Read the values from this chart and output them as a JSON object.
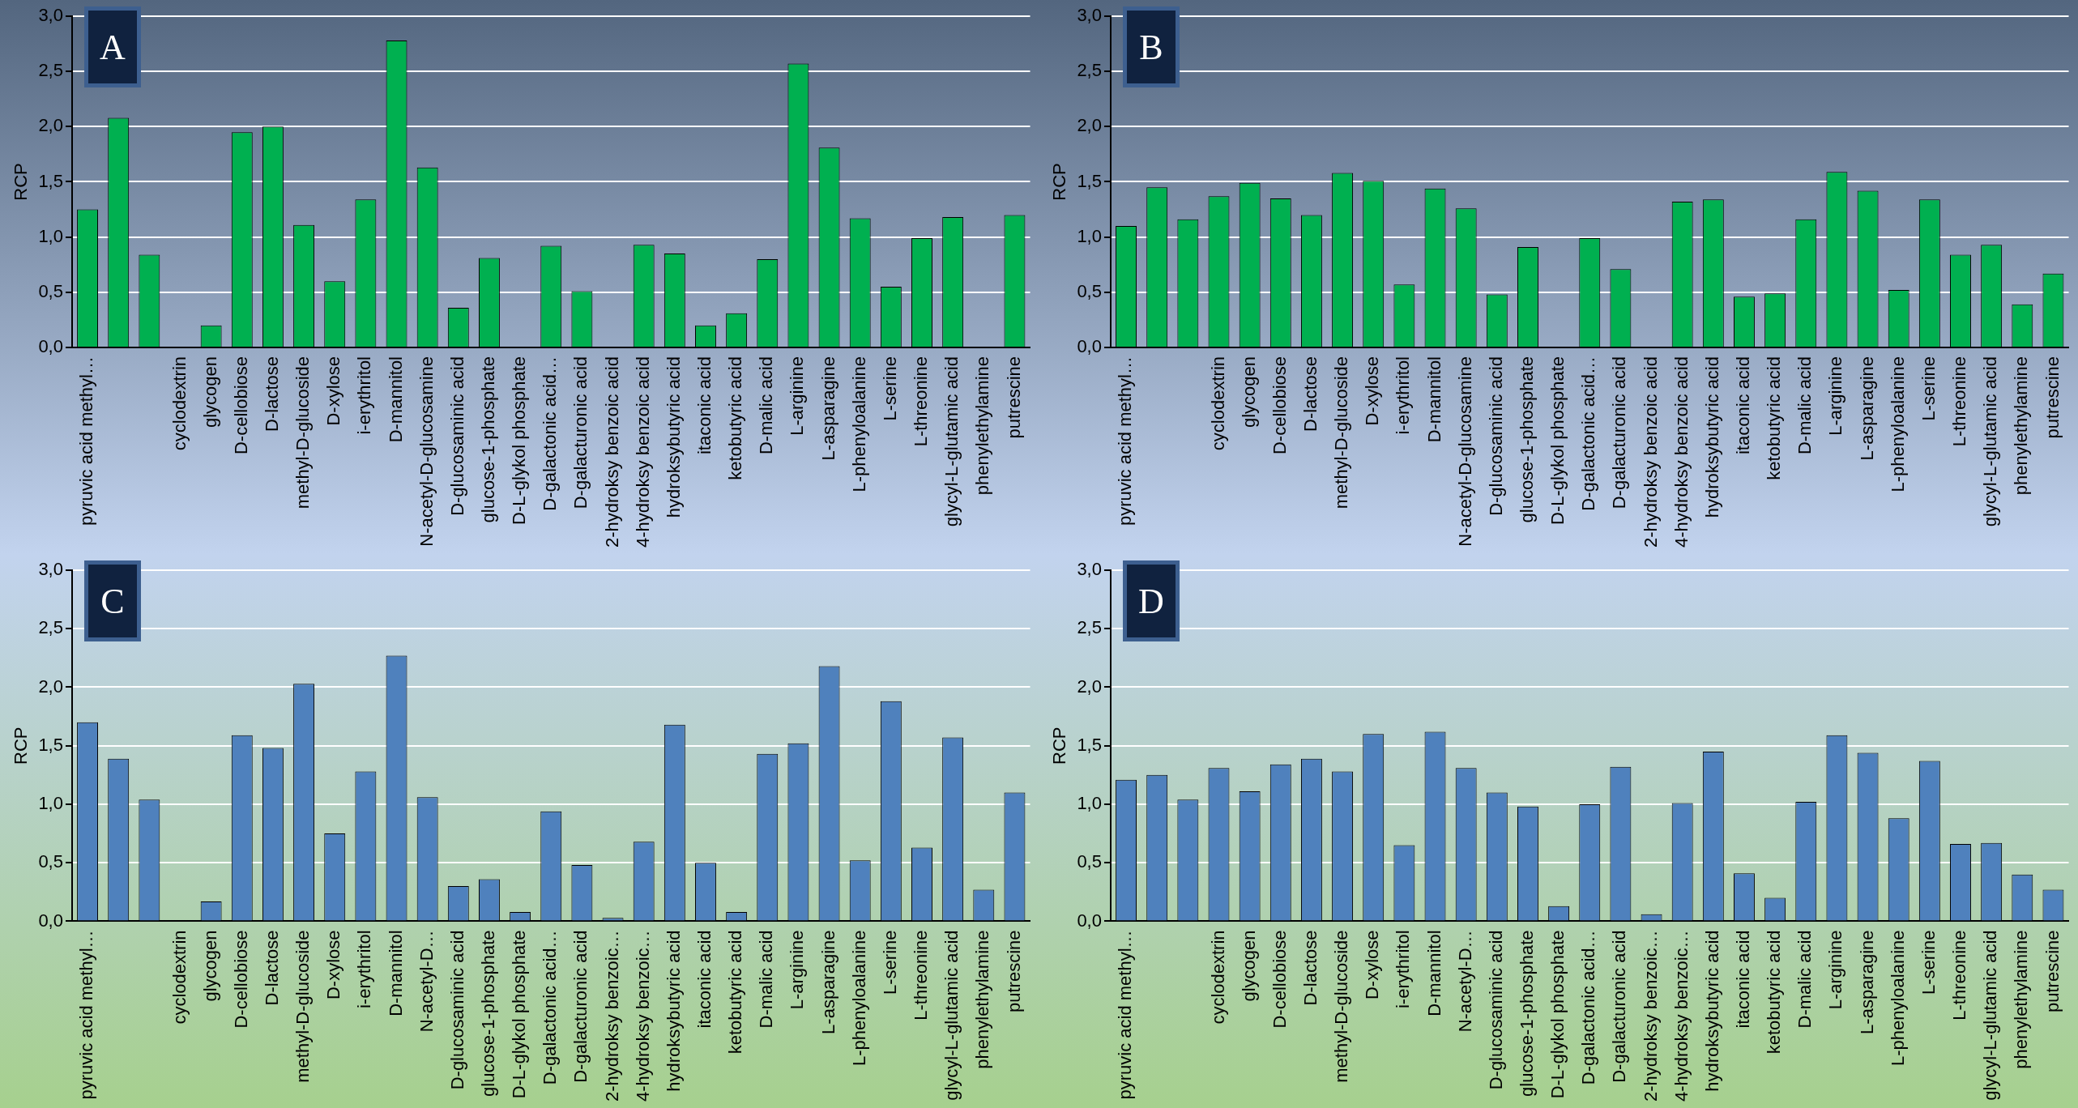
{
  "chart_data": [
    {
      "type": "bar",
      "title": "A",
      "ylabel": "RCP",
      "categories": [
        "pyruvic acid methyl…",
        null,
        null,
        "cyclodextrin",
        "glycogen",
        "D-cellobiose",
        "D-lactose",
        "methyl-D-glucoside",
        "D-xylose",
        "i-erythritol",
        "D-mannitol",
        "N-acetyl-D-glucosamine",
        "D-glucosaminic acid",
        "glucose-1-phosphate",
        "D-L-glykol phosphate",
        "D-galactonic acid…",
        "D-galacturonic acid",
        "2-hydroksy benzoic acid",
        "4-hydroksy benzoic acid",
        "hydroksybutyric acid",
        "itaconic acid",
        "ketobutyric acid",
        "D-malic acid",
        "L-arginine",
        "L-asparagine",
        "L-phenyloalanine",
        "L-serine",
        "L-threonine",
        "glycyl-L-glutamic acid",
        "phenylethylamine",
        "putrescine"
      ],
      "values": [
        1.25,
        2.08,
        0.84,
        0,
        0.2,
        1.95,
        2.0,
        1.11,
        0.6,
        1.34,
        2.78,
        1.63,
        0.36,
        0.81,
        0,
        0.92,
        0.51,
        0,
        0.93,
        0.85,
        0.2,
        0.31,
        0.8,
        2.57,
        1.81,
        1.17,
        0.55,
        0.99,
        1.18,
        0,
        1.2
      ],
      "color": "#00b050",
      "ylim": [
        0,
        3
      ],
      "yticks": [
        {
          "value": 0,
          "label": "0,0"
        },
        {
          "value": 0.5,
          "label": "0,5"
        },
        {
          "value": 1,
          "label": "1,0"
        },
        {
          "value": 1.5,
          "label": "1,5"
        },
        {
          "value": 2,
          "label": "2,0"
        },
        {
          "value": 2.5,
          "label": "2,5"
        },
        {
          "value": 3,
          "label": "3,0"
        }
      ],
      "grid": "y",
      "legend": false
    },
    {
      "type": "bar",
      "title": "B",
      "ylabel": "RCP",
      "categories": [
        "pyruvic acid methyl…",
        null,
        null,
        "cyclodextrin",
        "glycogen",
        "D-cellobiose",
        "D-lactose",
        "methyl-D-glucoside",
        "D-xylose",
        "i-erythritol",
        "D-mannitol",
        "N-acetyl-D-glucosamine",
        "D-glucosaminic acid",
        "glucose-1-phosphate",
        "D-L-glykol phosphate",
        "D-galactonic acid…",
        "D-galacturonic acid",
        "2-hydroksy benzoic acid",
        "4-hydroksy benzoic acid",
        "hydroksybutyric acid",
        "itaconic acid",
        "ketobutyric acid",
        "D-malic acid",
        "L-arginine",
        "L-asparagine",
        "L-phenyloalanine",
        "L-serine",
        "L-threonine",
        "glycyl-L-glutamic acid",
        "phenylethylamine",
        "putrescine"
      ],
      "values": [
        1.1,
        1.45,
        1.16,
        1.37,
        1.49,
        1.35,
        1.2,
        1.58,
        1.51,
        0.57,
        1.44,
        1.26,
        0.48,
        0.91,
        0,
        0.99,
        0.71,
        0,
        1.32,
        1.34,
        0.46,
        0.49,
        1.16,
        1.59,
        1.42,
        0.52,
        1.34,
        0.84,
        0.93,
        0.39,
        0.67
      ],
      "color": "#00b050",
      "ylim": [
        0,
        3
      ],
      "yticks": [
        {
          "value": 0,
          "label": "0,0"
        },
        {
          "value": 0.5,
          "label": "0,5"
        },
        {
          "value": 1,
          "label": "1,0"
        },
        {
          "value": 1.5,
          "label": "1,5"
        },
        {
          "value": 2,
          "label": "2,0"
        },
        {
          "value": 2.5,
          "label": "2,5"
        },
        {
          "value": 3,
          "label": "3,0"
        }
      ],
      "grid": "y",
      "legend": false
    },
    {
      "type": "bar",
      "title": "C",
      "ylabel": "RCP",
      "categories": [
        "pyruvic acid methyl…",
        null,
        null,
        "cyclodextrin",
        "glycogen",
        "D-cellobiose",
        "D-lactose",
        "methyl-D-glucoside",
        "D-xylose",
        "i-erythritol",
        "D-mannitol",
        "N-acetyl-D…",
        "D-glucosaminic acid",
        "glucose-1-phosphate",
        "D-L-glykol phosphate",
        "D-galactonic acid…",
        "D-galacturonic acid",
        "2-hydroksy benzoic…",
        "4-hydroksy benzoic…",
        "hydroksybutyric acid",
        "itaconic acid",
        "ketobutyric acid",
        "D-malic acid",
        "L-arginine",
        "L-asparagine",
        "L-phenyloalanine",
        "L-serine",
        "L-threonine",
        "glycyl-L-glutamic acid",
        "phenylethylamine",
        "putrescine"
      ],
      "values": [
        1.7,
        1.39,
        1.04,
        0,
        0.17,
        1.59,
        1.48,
        2.03,
        0.75,
        1.28,
        2.27,
        1.06,
        0.3,
        0.36,
        0.08,
        0.94,
        0.48,
        0.03,
        0.68,
        1.68,
        0.5,
        0.08,
        1.43,
        1.52,
        2.18,
        0.52,
        1.88,
        0.63,
        1.57,
        0.27,
        1.1
      ],
      "color": "#4f81bd",
      "ylim": [
        0,
        3
      ],
      "yticks": [
        {
          "value": 0,
          "label": "0,0"
        },
        {
          "value": 0.5,
          "label": "0,5"
        },
        {
          "value": 1,
          "label": "1,0"
        },
        {
          "value": 1.5,
          "label": "1,5"
        },
        {
          "value": 2,
          "label": "2,0"
        },
        {
          "value": 2.5,
          "label": "2,5"
        },
        {
          "value": 3,
          "label": "3,0"
        }
      ],
      "grid": "y",
      "legend": false
    },
    {
      "type": "bar",
      "title": "D",
      "ylabel": "RCP",
      "categories": [
        "pyruvic acid methyl…",
        null,
        null,
        "cyclodextrin",
        "glycogen",
        "D-cellobiose",
        "D-lactose",
        "methyl-D-glucoside",
        "D-xylose",
        "i-erythritol",
        "D-mannitol",
        "N-acetyl-D…",
        "D-glucosaminic acid",
        "glucose-1-phosphate",
        "D-L-glykol phosphate",
        "D-galactonic acid…",
        "D-galacturonic acid",
        "2-hydroksy benzoic…",
        "4-hydroksy benzoic…",
        "hydroksybutyric acid",
        "itaconic acid",
        "ketobutyric acid",
        "D-malic acid",
        "L-arginine",
        "L-asparagine",
        "L-phenyloalanine",
        "L-serine",
        "L-threonine",
        "glycyl-L-glutamic acid",
        "phenylethylamine",
        "putrescine"
      ],
      "values": [
        1.21,
        1.25,
        1.04,
        1.31,
        1.11,
        1.34,
        1.39,
        1.28,
        1.6,
        0.65,
        1.62,
        1.31,
        1.1,
        0.98,
        0.13,
        1.0,
        1.32,
        0.06,
        1.01,
        1.45,
        0.41,
        0.2,
        1.02,
        1.59,
        1.44,
        0.88,
        1.37,
        0.66,
        0.67,
        0.4,
        0.27
      ],
      "color": "#4f81bd",
      "ylim": [
        0,
        3
      ],
      "yticks": [
        {
          "value": 0,
          "label": "0,0"
        },
        {
          "value": 0.5,
          "label": "0,5"
        },
        {
          "value": 1,
          "label": "1,0"
        },
        {
          "value": 1.5,
          "label": "1,5"
        },
        {
          "value": 2,
          "label": "2,0"
        },
        {
          "value": 2.5,
          "label": "2,5"
        },
        {
          "value": 3,
          "label": "3,0"
        }
      ],
      "grid": "y",
      "legend": false
    }
  ]
}
